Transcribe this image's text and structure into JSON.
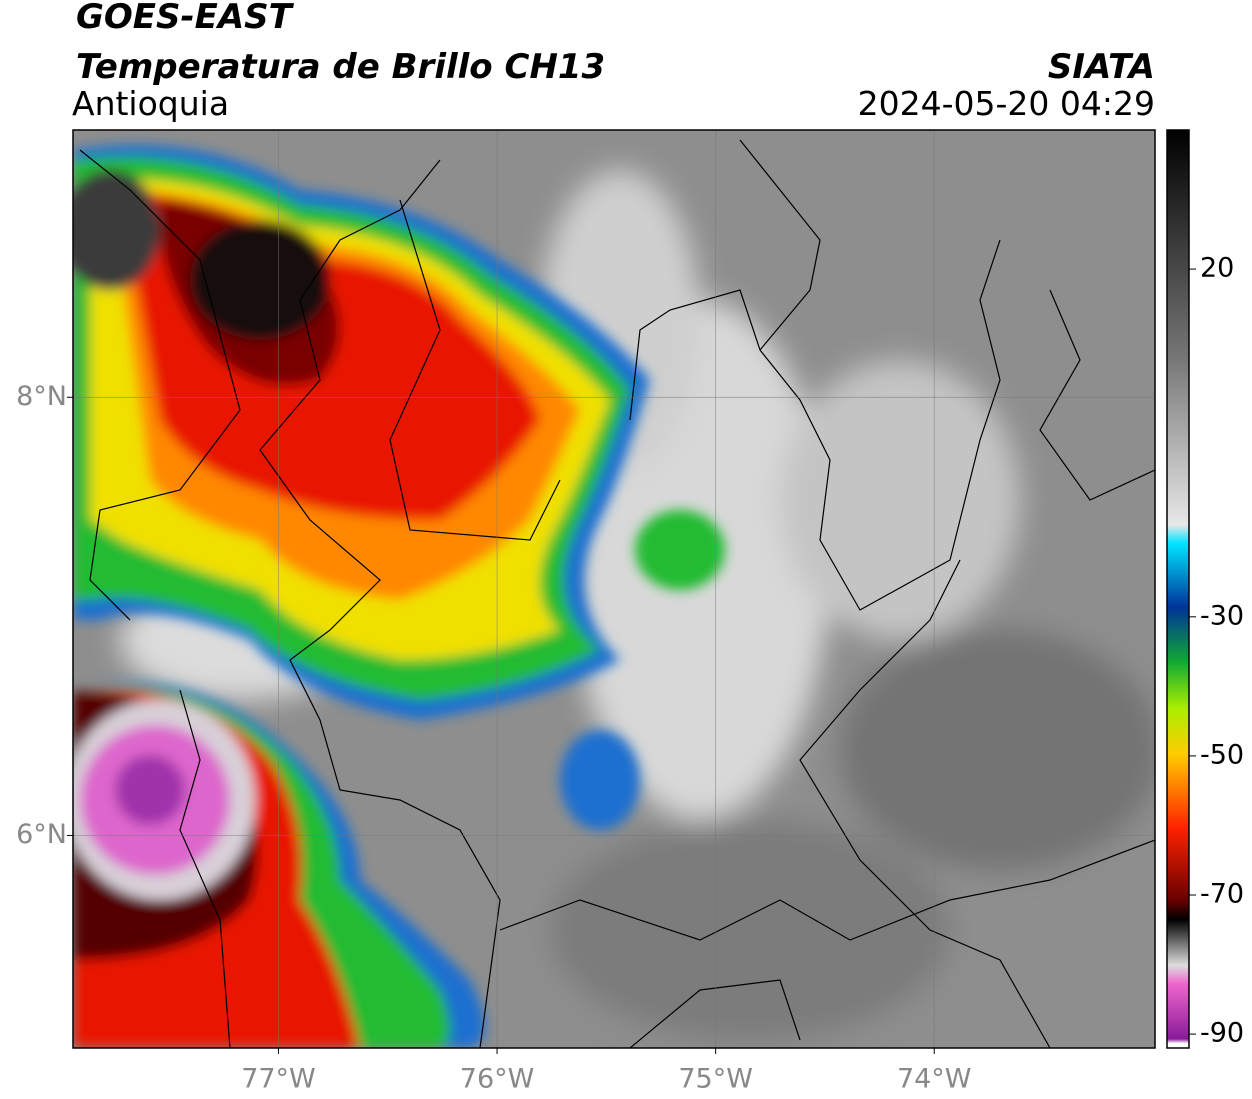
{
  "header": {
    "title": "GOES-EAST",
    "subtitle": "Temperatura de Brillo CH13",
    "region": "Antioquia",
    "source": "SIATA",
    "datetime": "2024-05-20 04:29"
  },
  "map": {
    "xlim": [
      -77.94,
      -72.99
    ],
    "ylim": [
      5.03,
      9.22
    ],
    "xticks": [
      {
        "value": -77,
        "label": "77°W"
      },
      {
        "value": -76,
        "label": "76°W"
      },
      {
        "value": -75,
        "label": "75°W"
      },
      {
        "value": -74,
        "label": "74°W"
      }
    ],
    "yticks": [
      {
        "value": 8,
        "label": "8°N"
      },
      {
        "value": 6,
        "label": "6°N"
      }
    ],
    "grid": true
  },
  "colorbar": {
    "lim": [
      -92,
      40
    ],
    "ticks": [
      20,
      -30,
      -50,
      -70,
      -90
    ]
  }
}
